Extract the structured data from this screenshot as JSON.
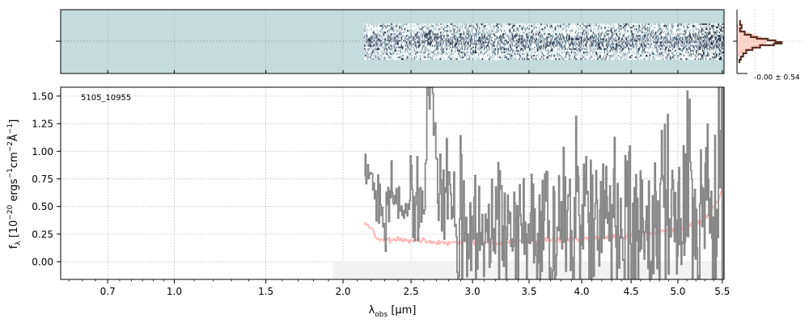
{
  "chart_data": [
    {
      "panel": "2d-spectrum",
      "type": "heatmap",
      "colormap": [
        "#c5dcdc",
        "#ffffff",
        "#7f96a5",
        "#1e2a44",
        "#000000"
      ],
      "background_color": "#c5dcdc",
      "grid": true,
      "trace_xlim": [
        2.15,
        5.52
      ],
      "xticks": [
        0.7,
        1.0,
        1.5,
        2.0,
        2.5,
        3.0,
        3.5,
        4.0,
        4.5,
        5.0,
        5.5
      ]
    },
    {
      "panel": "spatial-profile",
      "type": "line",
      "annotation": "-0.00 ± 0.54",
      "colors": {
        "profile": "#5a2e22",
        "model": "#ff9f88"
      }
    },
    {
      "panel": "1d-spectrum",
      "type": "line",
      "label": "5105_10955",
      "xlabel": "λ_obs [μm]",
      "ylabel": "f_λ [10^−20 ergs^−1cm^−2Å^−1]",
      "xscale": "sqrt",
      "xlim": [
        0.52,
        5.52
      ],
      "ylim": [
        -0.16,
        1.58
      ],
      "xticks": [
        0.7,
        1.0,
        1.5,
        2.0,
        2.5,
        3.0,
        3.5,
        4.0,
        4.5,
        5.0,
        5.5
      ],
      "xticklabels": [
        "0.7",
        "1.0",
        "1.5",
        "2.0",
        "2.5",
        "3.0",
        "3.5",
        "4.0",
        "4.5",
        "5.0",
        "5.5"
      ],
      "yticks": [
        0.0,
        0.25,
        0.5,
        0.75,
        1.0,
        1.25,
        1.5
      ],
      "yticklabels": [
        "0.00",
        "0.25",
        "0.50",
        "0.75",
        "1.00",
        "1.25",
        "1.50"
      ],
      "grid": true,
      "masked_region": {
        "x": [
          1.93,
          5.52
        ],
        "y": [
          -0.16,
          0.0
        ]
      },
      "series": [
        {
          "role": "data",
          "color": "#888888",
          "x_range": [
            2.15,
            5.52
          ],
          "anchors": [
            [
              2.15,
              0.67
            ],
            [
              2.2,
              0.78
            ],
            [
              2.25,
              0.6
            ],
            [
              2.3,
              0.48
            ],
            [
              2.35,
              0.62
            ],
            [
              2.4,
              0.55
            ],
            [
              2.45,
              0.42
            ],
            [
              2.5,
              0.55
            ],
            [
              2.55,
              0.45
            ],
            [
              2.6,
              0.56
            ],
            [
              2.63,
              1.5
            ],
            [
              2.67,
              1.45
            ],
            [
              2.7,
              0.72
            ],
            [
              2.75,
              0.65
            ],
            [
              2.8,
              0.72
            ],
            [
              2.85,
              0.5
            ],
            [
              2.9,
              0.35
            ],
            [
              2.95,
              0.25
            ],
            [
              3.0,
              0.42
            ],
            [
              3.05,
              0.3
            ],
            [
              3.1,
              0.32
            ],
            [
              3.2,
              0.28
            ],
            [
              3.3,
              0.25
            ],
            [
              3.4,
              0.3
            ],
            [
              3.5,
              0.28
            ],
            [
              3.6,
              0.3
            ],
            [
              3.7,
              0.32
            ],
            [
              3.8,
              0.35
            ],
            [
              3.9,
              0.3
            ],
            [
              4.0,
              0.28
            ],
            [
              4.1,
              0.32
            ],
            [
              4.2,
              0.3
            ],
            [
              4.3,
              0.28
            ],
            [
              4.4,
              0.3
            ],
            [
              4.5,
              0.32
            ],
            [
              4.6,
              0.3
            ],
            [
              4.7,
              0.3
            ],
            [
              4.8,
              0.33
            ],
            [
              4.9,
              0.32
            ],
            [
              5.0,
              0.3
            ],
            [
              5.1,
              0.32
            ],
            [
              5.2,
              0.38
            ],
            [
              5.3,
              0.45
            ],
            [
              5.35,
              0.55
            ],
            [
              5.4,
              0.7
            ],
            [
              5.45,
              0.8
            ],
            [
              5.5,
              0.9
            ],
            [
              5.52,
              0.9
            ]
          ],
          "scatter": [
            [
              2.15,
              0.1
            ],
            [
              2.3,
              0.15
            ],
            [
              2.5,
              0.18
            ],
            [
              2.7,
              0.25
            ],
            [
              3.0,
              0.3
            ],
            [
              3.5,
              0.35
            ],
            [
              4.0,
              0.38
            ],
            [
              4.5,
              0.4
            ],
            [
              5.0,
              0.45
            ],
            [
              5.3,
              0.6
            ],
            [
              5.4,
              0.8
            ],
            [
              5.52,
              1.0
            ]
          ]
        },
        {
          "role": "model",
          "color": "#ffaaaa",
          "x_range": [
            2.15,
            5.52
          ],
          "anchors": [
            [
              2.15,
              0.35
            ],
            [
              2.2,
              0.3
            ],
            [
              2.25,
              0.2
            ],
            [
              2.3,
              0.2
            ],
            [
              2.4,
              0.2
            ],
            [
              2.5,
              0.19
            ],
            [
              2.6,
              0.19
            ],
            [
              2.7,
              0.18
            ],
            [
              2.8,
              0.18
            ],
            [
              2.9,
              0.18
            ],
            [
              3.0,
              0.18
            ],
            [
              3.2,
              0.17
            ],
            [
              3.4,
              0.18
            ],
            [
              3.6,
              0.19
            ],
            [
              3.8,
              0.2
            ],
            [
              4.0,
              0.21
            ],
            [
              4.2,
              0.22
            ],
            [
              4.4,
              0.23
            ],
            [
              4.6,
              0.24
            ],
            [
              4.8,
              0.27
            ],
            [
              5.0,
              0.3
            ],
            [
              5.1,
              0.32
            ],
            [
              5.2,
              0.35
            ],
            [
              5.3,
              0.38
            ],
            [
              5.35,
              0.44
            ],
            [
              5.4,
              0.5
            ],
            [
              5.45,
              0.55
            ],
            [
              5.5,
              0.7
            ],
            [
              5.52,
              0.78
            ]
          ]
        }
      ]
    }
  ]
}
